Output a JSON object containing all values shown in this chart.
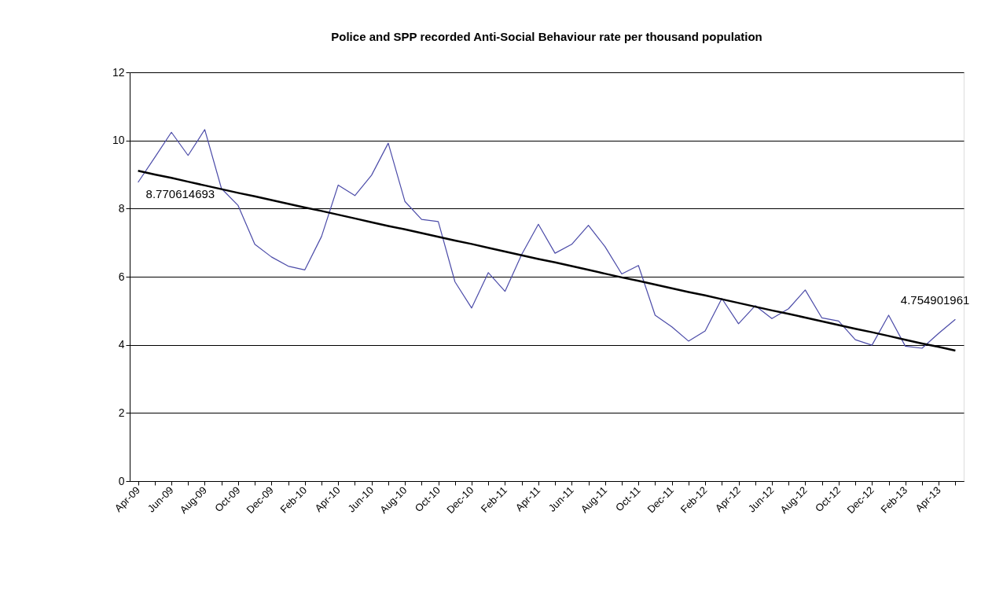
{
  "chart_data": {
    "type": "line",
    "title": "Police and SPP recorded Anti-Social Behaviour rate per thousand  population",
    "categories": [
      "Apr-09",
      null,
      "Jun-09",
      null,
      "Aug-09",
      null,
      "Oct-09",
      null,
      "Dec-09",
      null,
      "Feb-10",
      null,
      "Apr-10",
      null,
      "Jun-10",
      null,
      "Aug-10",
      null,
      "Oct-10",
      null,
      "Dec-10",
      null,
      "Feb-11",
      null,
      "Apr-11",
      null,
      "Jun-11",
      null,
      "Aug-11",
      null,
      "Oct-11",
      null,
      "Dec-11",
      null,
      "Feb-12",
      null,
      "Apr-12",
      null,
      "Jun-12",
      null,
      "Aug-12",
      null,
      "Oct-12",
      null,
      "Dec-12",
      null,
      "Feb-13",
      null,
      "Apr-13",
      null
    ],
    "series": [
      {
        "color": "#4b4ba8",
        "values": [
          8.77,
          9.5,
          10.24,
          9.56,
          10.32,
          8.59,
          8.09,
          6.95,
          6.58,
          6.31,
          6.2,
          7.18,
          8.69,
          8.38,
          8.98,
          9.92,
          8.21,
          7.68,
          7.62,
          5.85,
          5.08,
          6.12,
          5.57,
          6.65,
          7.54,
          6.69,
          6.95,
          7.51,
          6.88,
          6.08,
          6.33,
          4.87,
          4.53,
          4.11,
          4.41,
          5.36,
          4.62,
          5.15,
          4.77,
          5.06,
          5.61,
          4.79,
          4.7,
          4.15,
          3.99,
          4.87,
          3.96,
          3.9,
          4.34,
          4.75
        ]
      },
      {
        "type": "line",
        "color": "#000000",
        "values": [
          9.11,
          9.0,
          8.9,
          8.79,
          8.68,
          8.57,
          8.46,
          8.36,
          8.25,
          8.14,
          8.03,
          7.93,
          7.82,
          7.71,
          7.6,
          7.49,
          7.39,
          7.28,
          7.17,
          7.06,
          6.96,
          6.85,
          6.74,
          6.63,
          6.52,
          6.42,
          6.31,
          6.2,
          6.09,
          5.98,
          5.88,
          5.77,
          5.66,
          5.55,
          5.45,
          5.34,
          5.23,
          5.12,
          5.01,
          4.91,
          4.8,
          4.69,
          4.58,
          4.47,
          4.37,
          4.26,
          4.15,
          4.04,
          3.94,
          3.83
        ]
      }
    ],
    "annotations": [
      {
        "text": "8.770614693",
        "x": "Apr-09",
        "y": 8.77
      },
      "4.754901961"
    ],
    "ylim": [
      0,
      12
    ],
    "yticks": [
      0,
      2,
      4,
      6,
      8,
      10,
      12
    ],
    "grid": "y"
  }
}
